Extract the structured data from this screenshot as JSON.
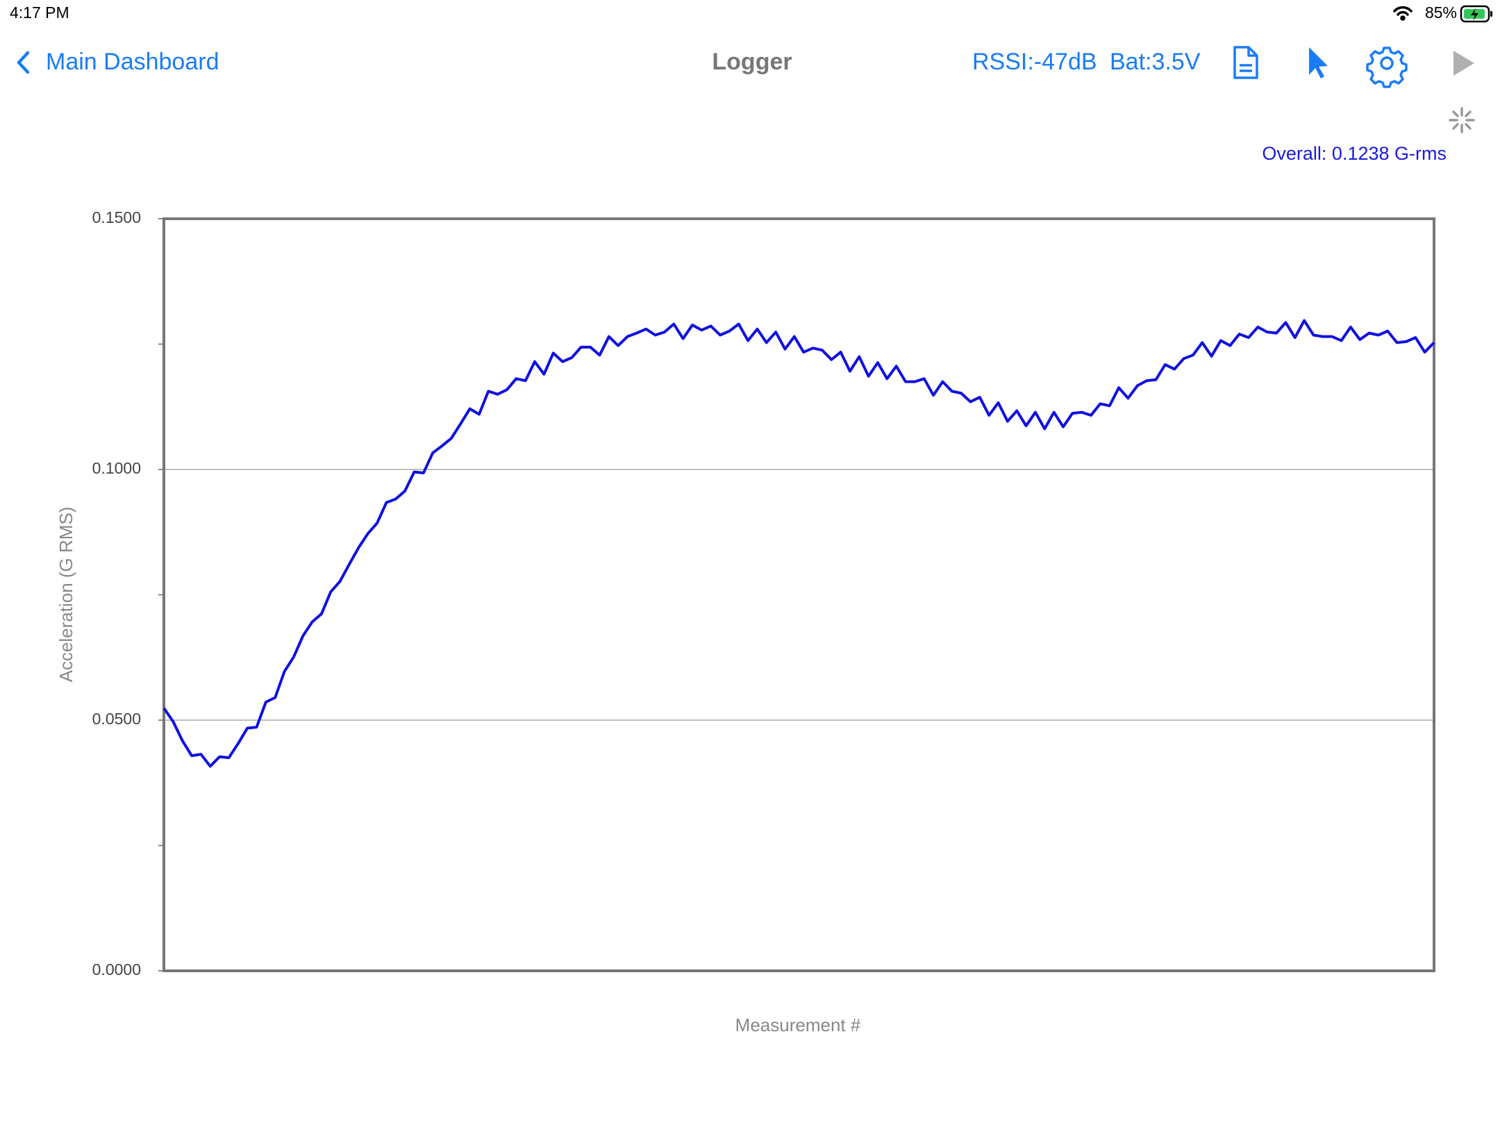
{
  "status_bar": {
    "time": "4:17 PM",
    "battery": "85%"
  },
  "nav": {
    "back": "Main Dashboard",
    "title": "Logger",
    "rssi": "RSSI:-47dB",
    "battery": "Bat:3.5V"
  },
  "overall": "Overall: 0.1238 G-rms",
  "chart_data": {
    "type": "line",
    "ylabel": "Acceleration (G RMS)",
    "xlabel": "Measurement #",
    "color": "#1010e0",
    "ylim": [
      0,
      0.15
    ],
    "yticks": [
      {
        "value": 0,
        "label": "0.0000"
      },
      {
        "value": 0.05,
        "label": "0.0500"
      },
      {
        "value": 0.1,
        "label": "0.1000"
      },
      {
        "value": 0.15,
        "label": "0.1500"
      }
    ],
    "minor_yticks": [
      0.025,
      0.075,
      0.125
    ],
    "grid": true,
    "values": [
      0.0524,
      0.0497,
      0.0459,
      0.0429,
      0.0432,
      0.0408,
      0.0427,
      0.0425,
      0.0453,
      0.0484,
      0.0486,
      0.0536,
      0.0545,
      0.0597,
      0.0626,
      0.0668,
      0.0696,
      0.0712,
      0.0756,
      0.0777,
      0.0811,
      0.0844,
      0.0872,
      0.0893,
      0.0934,
      0.0941,
      0.0957,
      0.0995,
      0.0993,
      0.1033,
      0.1047,
      0.1062,
      0.1091,
      0.1121,
      0.111,
      0.1156,
      0.115,
      0.1159,
      0.1181,
      0.1177,
      0.1215,
      0.119,
      0.1232,
      0.1215,
      0.1223,
      0.1244,
      0.1244,
      0.1228,
      0.1265,
      0.1247,
      0.1265,
      0.1272,
      0.128,
      0.1268,
      0.1274,
      0.129,
      0.1261,
      0.1288,
      0.1278,
      0.1286,
      0.1268,
      0.1276,
      0.129,
      0.1257,
      0.128,
      0.1253,
      0.1274,
      0.124,
      0.1265,
      0.1234,
      0.1242,
      0.1238,
      0.1219,
      0.1234,
      0.1196,
      0.1225,
      0.1186,
      0.1213,
      0.1181,
      0.1206,
      0.1175,
      0.1175,
      0.1181,
      0.1148,
      0.1175,
      0.1156,
      0.1152,
      0.1135,
      0.1144,
      0.1108,
      0.1133,
      0.1096,
      0.1117,
      0.1087,
      0.1114,
      0.1081,
      0.1114,
      0.1085,
      0.1112,
      0.1114,
      0.1108,
      0.1131,
      0.1127,
      0.1163,
      0.1142,
      0.1167,
      0.1177,
      0.1179,
      0.1209,
      0.12,
      0.1221,
      0.1228,
      0.1253,
      0.1226,
      0.1257,
      0.1247,
      0.127,
      0.1263,
      0.1284,
      0.1274,
      0.1272,
      0.1293,
      0.1263,
      0.1297,
      0.1268,
      0.1265,
      0.1265,
      0.1257,
      0.1284,
      0.1259,
      0.1272,
      0.1268,
      0.1276,
      0.1253,
      0.1255,
      0.1263,
      0.1234,
      0.1253
    ]
  }
}
